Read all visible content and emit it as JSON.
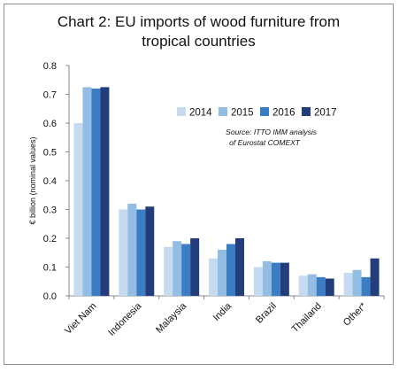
{
  "chart_data": {
    "type": "bar",
    "title_line1": "Chart 2: EU imports of wood furniture from",
    "title_line2": "tropical countries",
    "ylabel": "€ billion (nominal values)",
    "xlabel": "",
    "ylim": [
      0,
      0.8
    ],
    "yticks": [
      "0.0",
      "0.1",
      "0.2",
      "0.3",
      "0.4",
      "0.5",
      "0.6",
      "0.7",
      "0.8"
    ],
    "grid": false,
    "legend_placement": "top-right",
    "annotation_line1": "Source: ITTO IMM analysis",
    "annotation_line2": "of Eurostat COMEXT",
    "categories": [
      "Viet Nam",
      "Indonesia",
      "Malaysia",
      "India",
      "Brazil",
      "Thailand",
      "Other*"
    ],
    "series": [
      {
        "name": "2014",
        "color": "#c6dbef",
        "values": [
          0.6,
          0.3,
          0.17,
          0.13,
          0.1,
          0.07,
          0.08
        ]
      },
      {
        "name": "2015",
        "color": "#93bde3",
        "values": [
          0.725,
          0.32,
          0.19,
          0.16,
          0.12,
          0.075,
          0.09
        ]
      },
      {
        "name": "2016",
        "color": "#3a7dc4",
        "values": [
          0.72,
          0.3,
          0.18,
          0.18,
          0.115,
          0.065,
          0.065
        ]
      },
      {
        "name": "2017",
        "color": "#223d7a",
        "values": [
          0.725,
          0.31,
          0.2,
          0.2,
          0.115,
          0.06,
          0.13
        ]
      }
    ]
  }
}
